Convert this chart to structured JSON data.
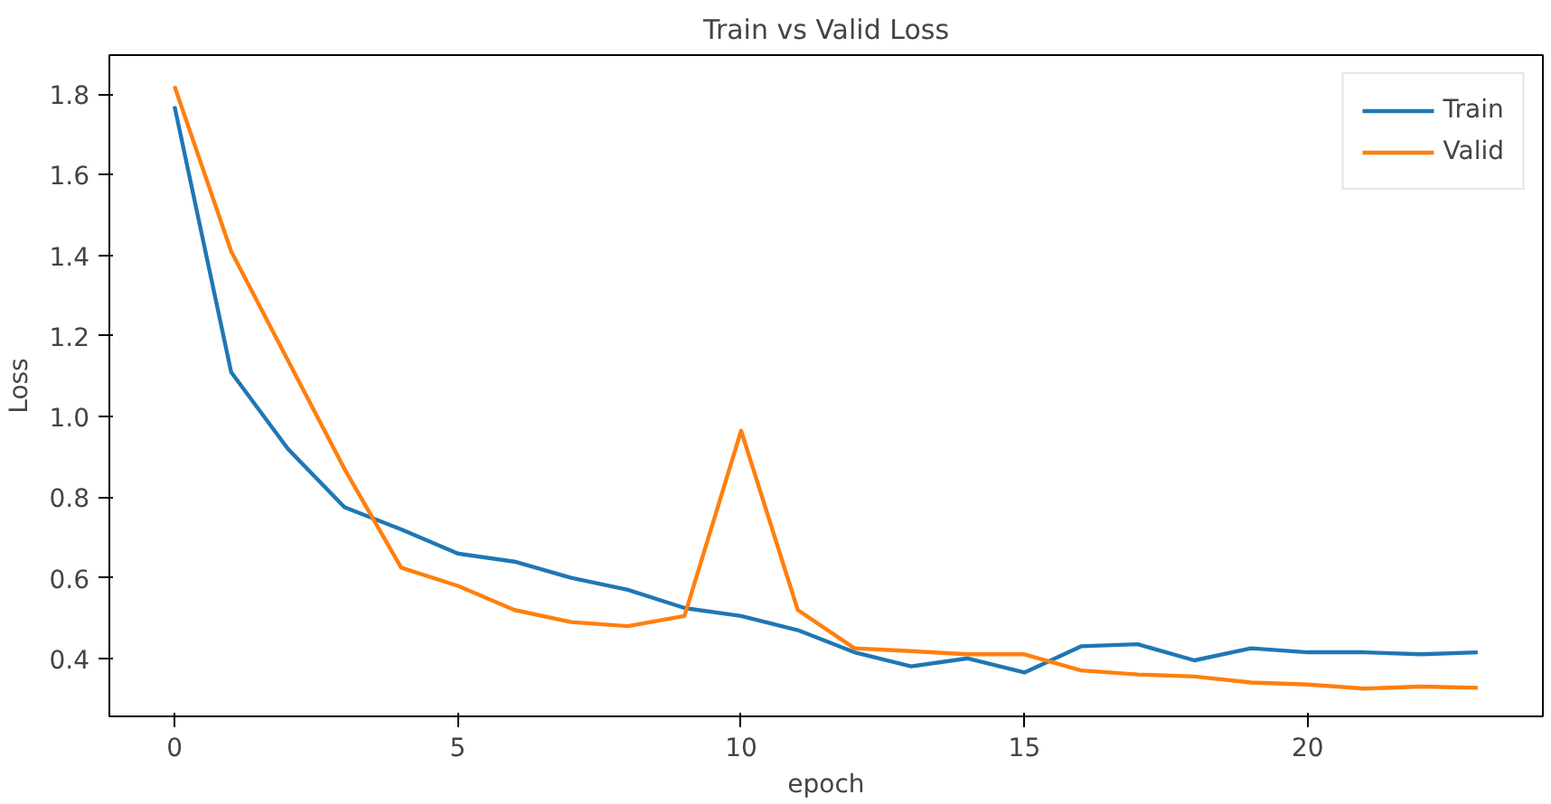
{
  "chart_data": {
    "type": "line",
    "title": "Train vs Valid Loss",
    "xlabel": "epoch",
    "ylabel": "Loss",
    "x": [
      0,
      1,
      2,
      3,
      4,
      5,
      6,
      7,
      8,
      9,
      10,
      11,
      12,
      13,
      14,
      15,
      16,
      17,
      18,
      19,
      20,
      21,
      22,
      23
    ],
    "series": [
      {
        "name": "Train",
        "color": "#1f77b4",
        "values": [
          1.77,
          1.11,
          0.92,
          0.775,
          0.72,
          0.66,
          0.64,
          0.6,
          0.57,
          0.525,
          0.505,
          0.47,
          0.415,
          0.38,
          0.4,
          0.365,
          0.43,
          0.435,
          0.395,
          0.425,
          0.415,
          0.415,
          0.41,
          0.415
        ]
      },
      {
        "name": "Valid",
        "color": "#ff7f0e",
        "values": [
          1.82,
          1.41,
          1.14,
          0.87,
          0.625,
          0.58,
          0.52,
          0.49,
          0.48,
          0.505,
          0.965,
          0.52,
          0.425,
          0.418,
          0.41,
          0.41,
          0.37,
          0.36,
          0.355,
          0.34,
          0.335,
          0.325,
          0.33,
          0.327
        ]
      }
    ],
    "xlim": [
      -1.15,
      24.15
    ],
    "ylim": [
      0.256,
      1.897
    ],
    "xticks": [
      0,
      5,
      10,
      15,
      20
    ],
    "yticks": [
      0.4,
      0.6,
      0.8,
      {
        "value": 1,
        "label": "1.0"
      },
      1.2,
      1.4,
      1.6,
      1.8
    ],
    "grid": false,
    "legend": "top right",
    "marker": "none",
    "line_style": "solid"
  }
}
